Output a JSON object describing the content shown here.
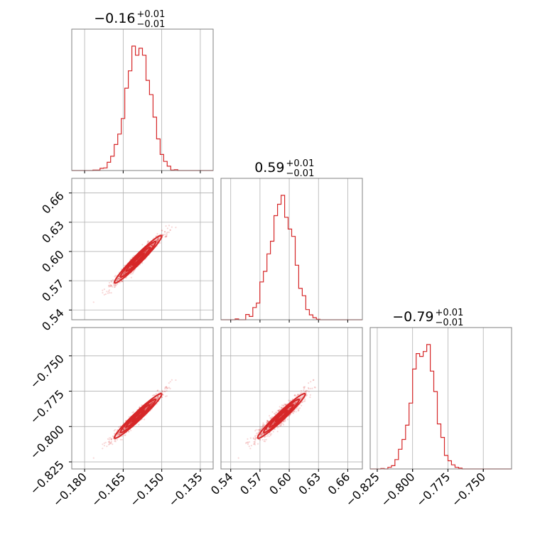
{
  "chart_data": {
    "type": "corner",
    "color": "#d62728",
    "grid": true,
    "parameters": [
      {
        "title": {
          "median": "−0.16",
          "upper": "+0.01",
          "lower": "−0.01"
        },
        "range": [
          -0.185,
          -0.13
        ],
        "ticks": [
          -0.18,
          -0.165,
          -0.15,
          -0.135
        ],
        "tick_labels": [
          "−0.180",
          "−0.165",
          "−0.150",
          "−0.135"
        ],
        "mean": -0.1592,
        "sd": 0.0046
      },
      {
        "title": {
          "median": "0.59",
          "upper": "+0.01",
          "lower": "−0.01"
        },
        "range": [
          0.53,
          0.675
        ],
        "ticks": [
          0.54,
          0.57,
          0.6,
          0.63,
          0.66
        ],
        "tick_labels": [
          "0.54",
          "0.57",
          "0.60",
          "0.63",
          "0.66"
        ],
        "mean": 0.592,
        "sd": 0.0122
      },
      {
        "title": {
          "median": "−0.79",
          "upper": "+0.01",
          "lower": "−0.01"
        },
        "range": [
          -0.83,
          -0.73
        ],
        "ticks": [
          -0.825,
          -0.8,
          -0.775,
          -0.75
        ],
        "tick_labels": [
          "−0.825",
          "−0.800",
          "−0.775",
          "−0.750"
        ],
        "mean": -0.7925,
        "sd": 0.0079
      }
    ],
    "correlation": 0.97
  }
}
